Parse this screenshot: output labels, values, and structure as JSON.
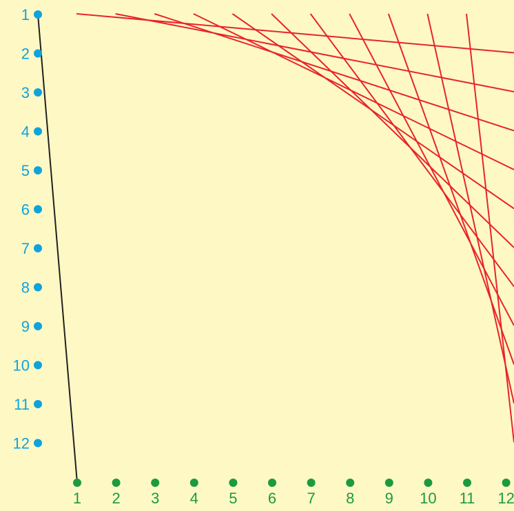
{
  "colors": {
    "background": "#fef8c5",
    "left_points": "#0fa3dc",
    "bottom_points": "#1c9a3e",
    "red_lines": "#e8242a",
    "black_line": "#231f20"
  },
  "left_labels": [
    "1",
    "2",
    "3",
    "4",
    "5",
    "6",
    "7",
    "8",
    "9",
    "10",
    "11",
    "12"
  ],
  "bottom_labels": [
    "1",
    "2",
    "3",
    "4",
    "5",
    "6",
    "7",
    "8",
    "9",
    "10",
    "11",
    "12"
  ],
  "lines": {
    "black": [
      [
        1,
        1
      ]
    ],
    "red": [
      [
        1,
        2
      ],
      [
        2,
        3
      ],
      [
        3,
        4
      ],
      [
        4,
        5
      ],
      [
        5,
        6
      ],
      [
        6,
        7
      ],
      [
        7,
        8
      ],
      [
        8,
        9
      ],
      [
        9,
        10
      ],
      [
        10,
        11
      ],
      [
        11,
        12
      ]
    ]
  }
}
